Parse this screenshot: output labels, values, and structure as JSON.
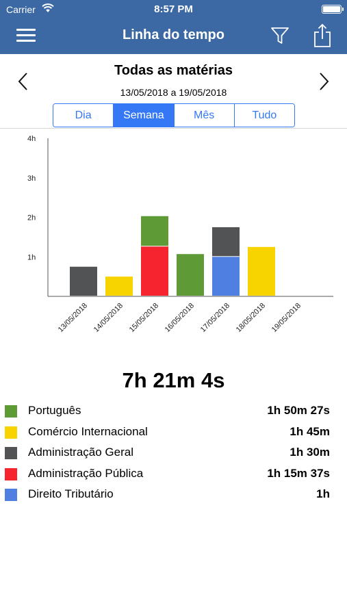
{
  "status_bar": {
    "carrier": "Carrier",
    "time": "8:57 PM"
  },
  "nav": {
    "title": "Linha do tempo",
    "menu_icon": "hamburger-menu-icon",
    "filter_icon": "filter-icon",
    "share_icon": "share-icon"
  },
  "header": {
    "subject": "Todas as matérias",
    "date_range": "13/05/2018 a 19/05/2018"
  },
  "segments": [
    {
      "label": "Dia",
      "active": false
    },
    {
      "label": "Semana",
      "active": true
    },
    {
      "label": "Mês",
      "active": false
    },
    {
      "label": "Tudo",
      "active": false
    }
  ],
  "chart_data": {
    "type": "bar",
    "stacked": true,
    "categories": [
      "13/05/2018",
      "14/05/2018",
      "15/05/2018",
      "16/05/2018",
      "17/05/2018",
      "18/05/2018",
      "19/05/2018"
    ],
    "yticks": [
      "1h",
      "2h",
      "3h",
      "4h"
    ],
    "ylim": [
      0,
      4
    ],
    "series": [
      {
        "name": "Português",
        "color": "#5e9a35",
        "values": [
          0,
          0,
          0.77,
          1.07,
          0,
          0,
          0
        ]
      },
      {
        "name": "Comércio Internacional",
        "color": "#f7d400",
        "values": [
          0,
          0.5,
          0,
          0,
          0,
          1.25,
          0
        ]
      },
      {
        "name": "Administração Geral",
        "color": "#515355",
        "values": [
          0.75,
          0,
          0,
          0,
          0.75,
          0,
          0
        ]
      },
      {
        "name": "Administração Pública",
        "color": "#f5242f",
        "values": [
          0,
          0,
          1.26,
          0,
          0,
          0,
          0
        ]
      },
      {
        "name": "Direito Tributário",
        "color": "#4f7fe0",
        "values": [
          0,
          0,
          0,
          0,
          1.0,
          0,
          0
        ]
      }
    ],
    "stack_order": [
      [
        "Administração Geral"
      ],
      [
        "Comércio Internacional"
      ],
      [
        "Administração Pública",
        "Português"
      ],
      [
        "Português"
      ],
      [
        "Direito Tributário",
        "Administração Geral"
      ],
      [
        "Comércio Internacional"
      ],
      []
    ]
  },
  "summary": {
    "total": "7h 21m 4s"
  },
  "legend": [
    {
      "name": "Português",
      "time": "1h 50m 27s",
      "color": "#5e9a35"
    },
    {
      "name": "Comércio Internacional",
      "time": "1h 45m",
      "color": "#f7d400"
    },
    {
      "name": "Administração Geral",
      "time": "1h 30m",
      "color": "#515355"
    },
    {
      "name": "Administração Pública",
      "time": "1h 15m 37s",
      "color": "#f5242f"
    },
    {
      "name": "Direito Tributário",
      "time": "1h",
      "color": "#4f7fe0"
    }
  ]
}
